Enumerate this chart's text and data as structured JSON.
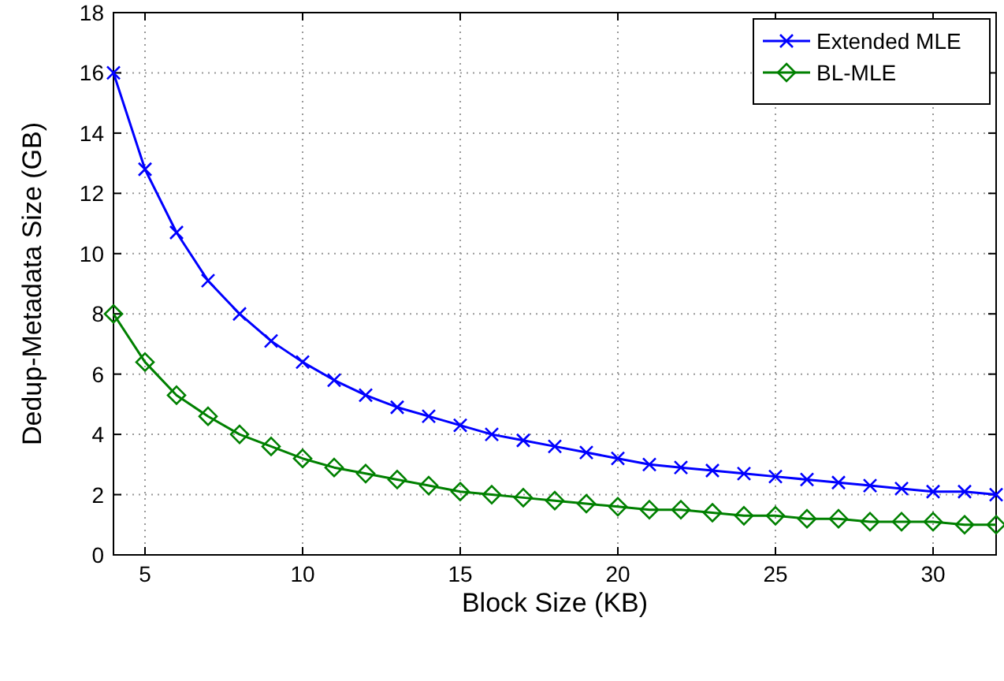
{
  "chart_data": {
    "type": "line",
    "xlabel": "Block Size (KB)",
    "ylabel": "Dedup-Metadata Size (GB)",
    "x": [
      4,
      5,
      6,
      7,
      8,
      9,
      10,
      11,
      12,
      13,
      14,
      15,
      16,
      17,
      18,
      19,
      20,
      21,
      22,
      23,
      24,
      25,
      26,
      27,
      28,
      29,
      30,
      31,
      32
    ],
    "series": [
      {
        "name": "Extended MLE",
        "color": "#0000ff",
        "marker": "cross",
        "values": [
          16,
          12.8,
          10.7,
          9.1,
          8,
          7.1,
          6.4,
          5.8,
          5.3,
          4.9,
          4.6,
          4.3,
          4,
          3.8,
          3.6,
          3.4,
          3.2,
          3,
          2.9,
          2.8,
          2.7,
          2.6,
          2.5,
          2.4,
          2.3,
          2.2,
          2.1,
          2.1,
          2
        ]
      },
      {
        "name": "BL-MLE",
        "color": "#008000",
        "marker": "diamond",
        "values": [
          8,
          6.4,
          5.3,
          4.6,
          4,
          3.6,
          3.2,
          2.9,
          2.7,
          2.5,
          2.3,
          2.1,
          2,
          1.9,
          1.8,
          1.7,
          1.6,
          1.5,
          1.5,
          1.4,
          1.3,
          1.3,
          1.2,
          1.2,
          1.1,
          1.1,
          1.1,
          1,
          1
        ]
      }
    ],
    "xlim": [
      4,
      32
    ],
    "xticks": [
      5,
      10,
      15,
      20,
      25,
      30
    ],
    "ylim": [
      0,
      18
    ],
    "yticks": [
      0,
      2,
      4,
      6,
      8,
      10,
      12,
      14,
      16,
      18
    ],
    "grid": true,
    "legend": "top right",
    "line_style": "solid"
  }
}
